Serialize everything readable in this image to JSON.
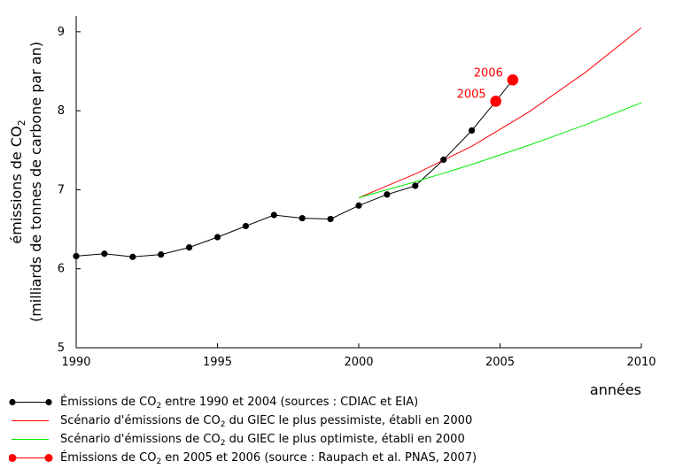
{
  "chart_data": {
    "type": "line",
    "title": "",
    "xlabel": "années",
    "ylabel_line1": "émissions de CO",
    "ylabel_sub": "2",
    "ylabel_line2": "(milliards de tonnes de carbone par an)",
    "xlim": [
      1990,
      2010
    ],
    "ylim": [
      5,
      9.2
    ],
    "xticks": [
      1990,
      1995,
      2000,
      2005,
      2010
    ],
    "yticks": [
      5,
      6,
      7,
      8,
      9
    ],
    "grid": false,
    "legend_position": "bottom",
    "series": [
      {
        "name": "historical",
        "color": "#000000",
        "marker": "dot",
        "x": [
          1990,
          1991,
          1992,
          1993,
          1994,
          1995,
          1996,
          1997,
          1998,
          1999,
          2000,
          2001,
          2002,
          2003,
          2004
        ],
        "y": [
          6.16,
          6.19,
          6.15,
          6.18,
          6.27,
          6.4,
          6.54,
          6.68,
          6.64,
          6.63,
          6.8,
          6.94,
          7.05,
          7.38,
          7.75
        ]
      },
      {
        "name": "pessimistic",
        "color": "#ff0000",
        "marker": "none",
        "x": [
          2000,
          2002,
          2004,
          2006,
          2008,
          2010
        ],
        "y": [
          6.9,
          7.2,
          7.55,
          7.98,
          8.48,
          9.05
        ]
      },
      {
        "name": "optimistic",
        "color": "#00ee00",
        "marker": "none",
        "x": [
          2000,
          2002,
          2004,
          2006,
          2008,
          2010
        ],
        "y": [
          6.9,
          7.1,
          7.32,
          7.56,
          7.82,
          8.1
        ]
      },
      {
        "name": "recent",
        "color": "#ff0000",
        "marker": "bigdot",
        "x": [
          2004.85,
          2005.45
        ],
        "y": [
          8.12,
          8.39
        ],
        "labels": [
          "2005",
          "2006"
        ]
      }
    ],
    "connector": {
      "x": [
        2004,
        2004.85,
        2005.45
      ],
      "y": [
        7.75,
        8.12,
        8.39
      ]
    }
  },
  "legend": {
    "items": [
      {
        "pre": "Émissions de CO",
        "sub": "2",
        "post": " entre 1990 et 2004 (sources : CDIAC et EIA)",
        "color": "#000000",
        "marker": "dot"
      },
      {
        "pre": "Scénario d'émissions de CO",
        "sub": "2",
        "post": " du GIEC le plus pessimiste, établi en 2000",
        "color": "#ff0000",
        "marker": "none"
      },
      {
        "pre": "Scénario d'émissions de CO",
        "sub": "2",
        "post": " du GIEC le plus optimiste, établi en 2000",
        "color": "#00ee00",
        "marker": "none"
      },
      {
        "pre": "Émissions de CO",
        "sub": "2",
        "post": " en 2005 et 2006 (source : Raupach et al. PNAS, 2007)",
        "color": "#ff0000",
        "marker": "bigdot"
      }
    ]
  }
}
